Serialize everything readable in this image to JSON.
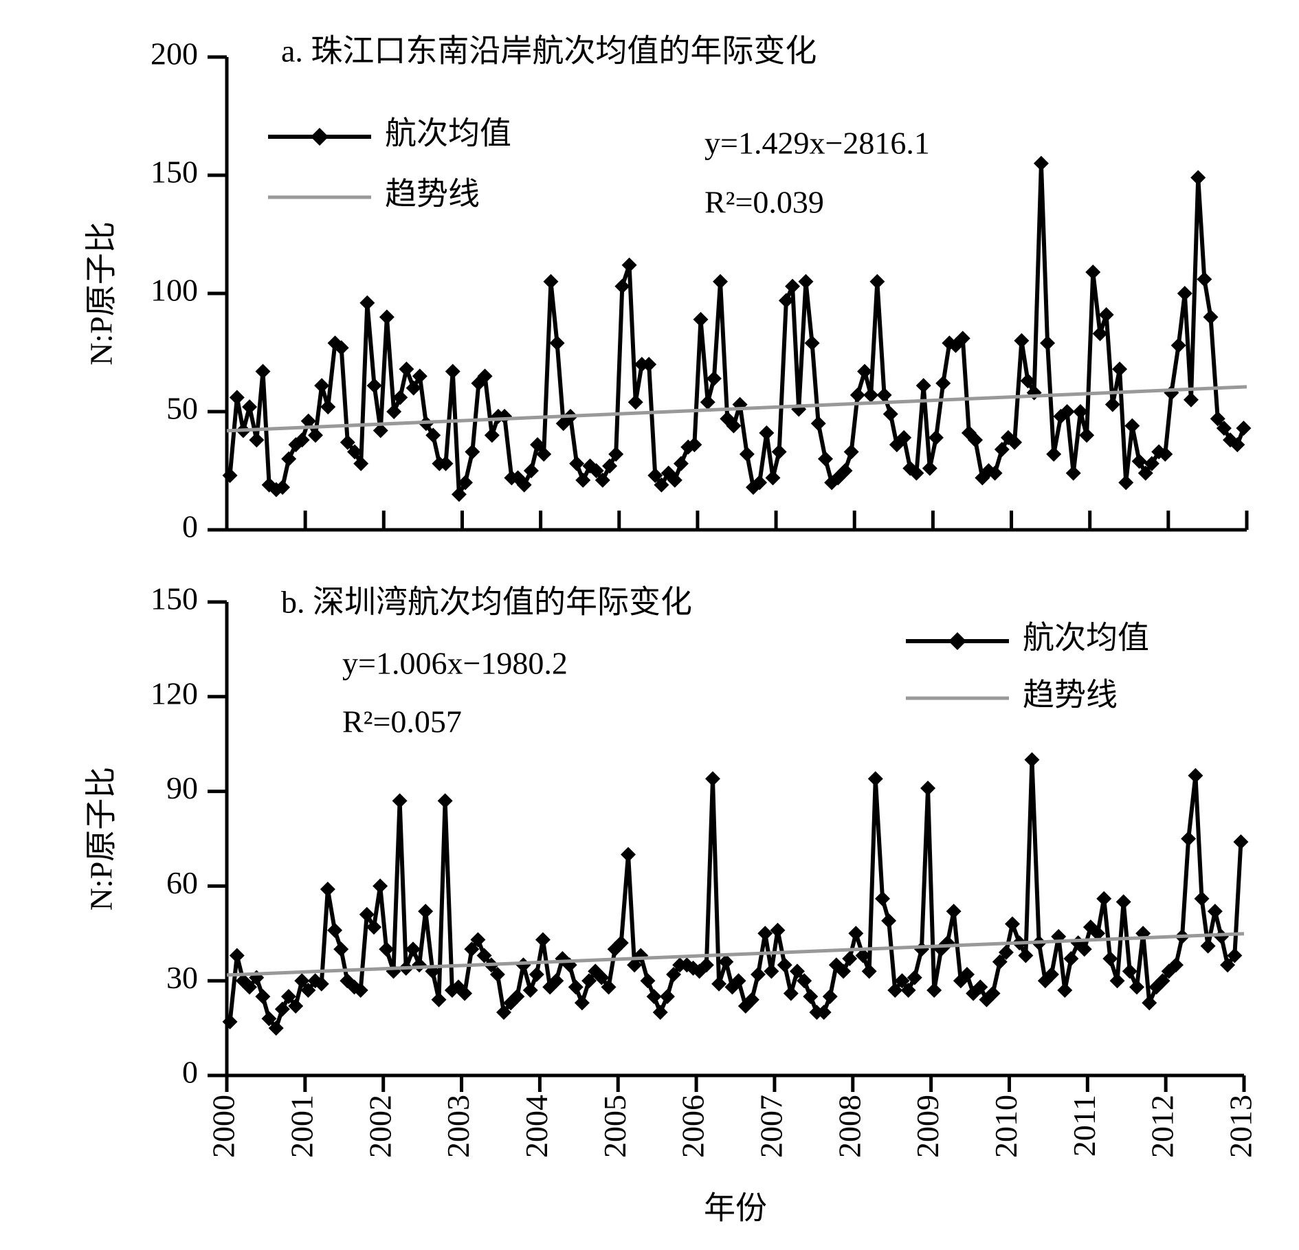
{
  "chart_data": [
    {
      "type": "line",
      "title": "a. 珠江口东南沿岸航次均值的年际变化",
      "ylabel": "N:P原子比",
      "xlim": [
        2000,
        2013
      ],
      "xticks": [
        2000,
        2001,
        2002,
        2003,
        2004,
        2005,
        2006,
        2007,
        2008,
        2009,
        2010,
        2011,
        2012,
        2013
      ],
      "ylim": [
        0,
        200
      ],
      "yticks": [
        0,
        50,
        100,
        150,
        200
      ],
      "legend": "upper left",
      "annotations": [
        "y=1.429x−2816.1",
        "R²=0.039"
      ],
      "x": [
        2000.04,
        2000.13,
        2000.21,
        2000.29,
        2000.38,
        2000.46,
        2000.54,
        2000.63,
        2000.71,
        2000.79,
        2000.88,
        2000.96,
        2001.04,
        2001.13,
        2001.21,
        2001.29,
        2001.38,
        2001.46,
        2001.54,
        2001.63,
        2001.71,
        2001.79,
        2001.88,
        2001.96,
        2002.04,
        2002.13,
        2002.21,
        2002.29,
        2002.38,
        2002.46,
        2002.54,
        2002.63,
        2002.71,
        2002.79,
        2002.88,
        2002.96,
        2003.04,
        2003.13,
        2003.21,
        2003.29,
        2003.38,
        2003.46,
        2003.54,
        2003.63,
        2003.71,
        2003.79,
        2003.88,
        2003.96,
        2004.04,
        2004.13,
        2004.21,
        2004.29,
        2004.38,
        2004.46,
        2004.54,
        2004.63,
        2004.71,
        2004.79,
        2004.88,
        2004.96,
        2005.04,
        2005.13,
        2005.21,
        2005.29,
        2005.38,
        2005.46,
        2005.54,
        2005.63,
        2005.71,
        2005.79,
        2005.88,
        2005.96,
        2006.04,
        2006.13,
        2006.21,
        2006.29,
        2006.38,
        2006.46,
        2006.54,
        2006.63,
        2006.71,
        2006.79,
        2006.88,
        2006.96,
        2007.04,
        2007.13,
        2007.21,
        2007.29,
        2007.38,
        2007.46,
        2007.54,
        2007.63,
        2007.71,
        2007.79,
        2007.88,
        2007.96,
        2008.04,
        2008.13,
        2008.21,
        2008.29,
        2008.38,
        2008.46,
        2008.54,
        2008.63,
        2008.71,
        2008.79,
        2008.88,
        2008.96,
        2009.04,
        2009.13,
        2009.21,
        2009.29,
        2009.38,
        2009.46,
        2009.54,
        2009.63,
        2009.71,
        2009.79,
        2009.88,
        2009.96,
        2010.04,
        2010.13,
        2010.21,
        2010.29,
        2010.38,
        2010.46,
        2010.54,
        2010.63,
        2010.71,
        2010.79,
        2010.88,
        2010.96,
        2011.04,
        2011.13,
        2011.21,
        2011.29,
        2011.38,
        2011.46,
        2011.54,
        2011.63,
        2011.71,
        2011.79,
        2011.88,
        2011.96,
        2012.04,
        2012.13,
        2012.21,
        2012.29,
        2012.38,
        2012.46,
        2012.54,
        2012.63,
        2012.71,
        2012.79,
        2012.88,
        2012.96
      ],
      "series": [
        {
          "name": "航次均值",
          "color": "#000000",
          "values": [
            23,
            56,
            42,
            52,
            38,
            67,
            19,
            17,
            18,
            30,
            36,
            38,
            46,
            40,
            61,
            52,
            79,
            77,
            37,
            33,
            28,
            96,
            61,
            42,
            90,
            50,
            56,
            68,
            60,
            65,
            45,
            40,
            28,
            28,
            67,
            15,
            20,
            33,
            62,
            65,
            40,
            48,
            48,
            22,
            22,
            19,
            25,
            36,
            32,
            105,
            79,
            45,
            48,
            28,
            21,
            27,
            25,
            21,
            27,
            32,
            103,
            112,
            54,
            70,
            70,
            23,
            19,
            24,
            21,
            28,
            35,
            36,
            89,
            54,
            64,
            105,
            47,
            44,
            53,
            32,
            18,
            20,
            41,
            22,
            33,
            97,
            103,
            51,
            105,
            79,
            45,
            30,
            20,
            22,
            25,
            33,
            57,
            67,
            57,
            105,
            57,
            49,
            36,
            39,
            26,
            24,
            61,
            26,
            39,
            62,
            79,
            78,
            81,
            41,
            38,
            22,
            25,
            24,
            34,
            39,
            37,
            80,
            63,
            58,
            155,
            79,
            32,
            48,
            50,
            24,
            50,
            40,
            109,
            83,
            91,
            53,
            68,
            20,
            44,
            29,
            24,
            28,
            33,
            32,
            58,
            78,
            100,
            55,
            149,
            106,
            90,
            47,
            43,
            38,
            36,
            43
          ]
        },
        {
          "name": "趋势线",
          "color": "#999999",
          "x": [
            2000,
            2013
          ],
          "values": [
            41.9,
            60.5
          ]
        }
      ]
    },
    {
      "type": "line",
      "title": "b. 深圳湾航次均值的年际变化",
      "ylabel": "N:P原子比",
      "xlabel": "年份",
      "xlim": [
        2000,
        2013
      ],
      "xticks": [
        2000,
        2001,
        2002,
        2003,
        2004,
        2005,
        2006,
        2007,
        2008,
        2009,
        2010,
        2011,
        2012,
        2013
      ],
      "ylim": [
        0,
        150
      ],
      "yticks": [
        0,
        30,
        60,
        90,
        120,
        150
      ],
      "legend": "upper right",
      "annotations": [
        "y=1.006x−1980.2",
        "R²=0.057"
      ],
      "x": [
        2000.04,
        2000.13,
        2000.21,
        2000.29,
        2000.38,
        2000.46,
        2000.54,
        2000.63,
        2000.71,
        2000.79,
        2000.88,
        2000.96,
        2001.04,
        2001.13,
        2001.21,
        2001.29,
        2001.38,
        2001.46,
        2001.54,
        2001.63,
        2001.71,
        2001.79,
        2001.88,
        2001.96,
        2002.04,
        2002.13,
        2002.21,
        2002.29,
        2002.38,
        2002.46,
        2002.54,
        2002.63,
        2002.71,
        2002.79,
        2002.88,
        2002.96,
        2003.04,
        2003.13,
        2003.21,
        2003.29,
        2003.38,
        2003.46,
        2003.54,
        2003.63,
        2003.71,
        2003.79,
        2003.88,
        2003.96,
        2004.04,
        2004.13,
        2004.21,
        2004.29,
        2004.38,
        2004.46,
        2004.54,
        2004.63,
        2004.71,
        2004.79,
        2004.88,
        2004.96,
        2005.04,
        2005.13,
        2005.21,
        2005.29,
        2005.38,
        2005.46,
        2005.54,
        2005.63,
        2005.71,
        2005.79,
        2005.88,
        2005.96,
        2006.04,
        2006.13,
        2006.21,
        2006.29,
        2006.38,
        2006.46,
        2006.54,
        2006.63,
        2006.71,
        2006.79,
        2006.88,
        2006.96,
        2007.04,
        2007.13,
        2007.21,
        2007.29,
        2007.38,
        2007.46,
        2007.54,
        2007.63,
        2007.71,
        2007.79,
        2007.88,
        2007.96,
        2008.04,
        2008.13,
        2008.21,
        2008.29,
        2008.38,
        2008.46,
        2008.54,
        2008.63,
        2008.71,
        2008.79,
        2008.88,
        2008.96,
        2009.04,
        2009.13,
        2009.21,
        2009.29,
        2009.38,
        2009.46,
        2009.54,
        2009.63,
        2009.71,
        2009.79,
        2009.88,
        2009.96,
        2010.04,
        2010.13,
        2010.21,
        2010.29,
        2010.38,
        2010.46,
        2010.54,
        2010.63,
        2010.71,
        2010.79,
        2010.88,
        2010.96,
        2011.04,
        2011.13,
        2011.21,
        2011.29,
        2011.38,
        2011.46,
        2011.54,
        2011.63,
        2011.71,
        2011.79,
        2011.88,
        2011.96,
        2012.04,
        2012.13,
        2012.21,
        2012.29,
        2012.38,
        2012.46,
        2012.54,
        2012.63,
        2012.71,
        2012.79,
        2012.88,
        2012.96
      ],
      "series": [
        {
          "name": "航次均值",
          "color": "#000000",
          "values": [
            17,
            38,
            30,
            28,
            31,
            25,
            18,
            15,
            21,
            25,
            22,
            30,
            27,
            30,
            29,
            59,
            46,
            40,
            30,
            28,
            27,
            51,
            47,
            60,
            40,
            33,
            87,
            34,
            40,
            35,
            52,
            33,
            24,
            87,
            27,
            28,
            26,
            40,
            43,
            38,
            35,
            32,
            20,
            23,
            25,
            35,
            27,
            32,
            43,
            28,
            30,
            37,
            35,
            28,
            23,
            30,
            33,
            31,
            28,
            40,
            42,
            70,
            35,
            38,
            30,
            25,
            20,
            25,
            32,
            35,
            35,
            34,
            33,
            35,
            94,
            29,
            36,
            28,
            30,
            22,
            24,
            32,
            45,
            33,
            46,
            35,
            26,
            33,
            30,
            25,
            20,
            20,
            25,
            35,
            33,
            37,
            45,
            38,
            33,
            94,
            56,
            49,
            27,
            30,
            27,
            31,
            40,
            91,
            27,
            40,
            42,
            52,
            30,
            32,
            26,
            28,
            24,
            26,
            36,
            39,
            48,
            42,
            38,
            100,
            42,
            30,
            32,
            44,
            27,
            37,
            42,
            40,
            47,
            45,
            56,
            37,
            30,
            55,
            33,
            28,
            45,
            23,
            28,
            30,
            33,
            35,
            44,
            75,
            95,
            56,
            41,
            52,
            44,
            35,
            38,
            74
          ]
        },
        {
          "name": "趋势线",
          "color": "#999999",
          "x": [
            2000,
            2013
          ],
          "values": [
            31.8,
            44.9
          ]
        }
      ]
    }
  ]
}
